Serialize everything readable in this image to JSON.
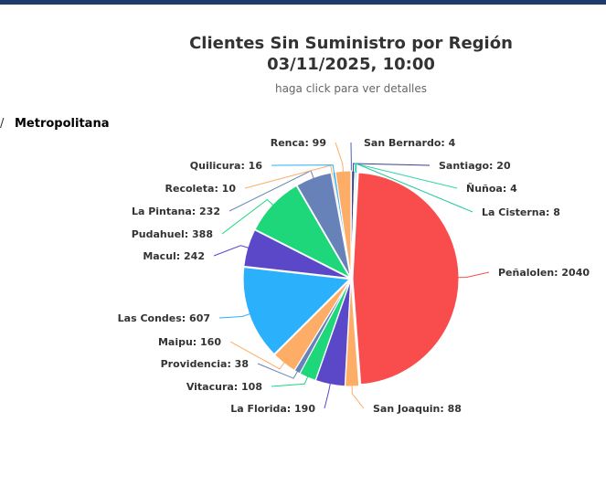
{
  "header": {
    "title_line1": "Clientes Sin Suministro por Región",
    "title_line2": "03/11/2025, 10:00",
    "subtitle": "haga click para ver detalles"
  },
  "breadcrumb": {
    "separator": "/",
    "current": "Metropolitana"
  },
  "chart_data": {
    "type": "pie",
    "title": "Clientes Sin Suministro por Región",
    "subtitle": "haga click para ver detalles",
    "slices": [
      {
        "name": "San Bernardo",
        "value": 4,
        "color": "#4a5fc7"
      },
      {
        "name": "Santiago",
        "value": 20,
        "color": "#3a3f8f"
      },
      {
        "name": "Ñuñoa",
        "value": 4,
        "color": "#33d6a6"
      },
      {
        "name": "La Cisterna",
        "value": 8,
        "color": "#22c9a0"
      },
      {
        "name": "Peñalolen",
        "value": 2040,
        "color": "#f94d4d"
      },
      {
        "name": "San Joaquin",
        "value": 88,
        "color": "#fdad65"
      },
      {
        "name": "La Florida",
        "value": 190,
        "color": "#5a48c8"
      },
      {
        "name": "Vitacura",
        "value": 108,
        "color": "#1ed77a"
      },
      {
        "name": "Providencia",
        "value": 38,
        "color": "#6782b8"
      },
      {
        "name": "Maipu",
        "value": 160,
        "color": "#fdad65"
      },
      {
        "name": "Las Condes",
        "value": 607,
        "color": "#2bb0fc"
      },
      {
        "name": "Macul",
        "value": 242,
        "color": "#5a48c8"
      },
      {
        "name": "Pudahuel",
        "value": 388,
        "color": "#1ed77a"
      },
      {
        "name": "La Pintana",
        "value": 232,
        "color": "#6782b8"
      },
      {
        "name": "Recoleta",
        "value": 10,
        "color": "#fdad65"
      },
      {
        "name": "Quilicura",
        "value": 16,
        "color": "#2bb0fc"
      },
      {
        "name": "Renca",
        "value": 99,
        "color": "#fdad65"
      }
    ]
  }
}
